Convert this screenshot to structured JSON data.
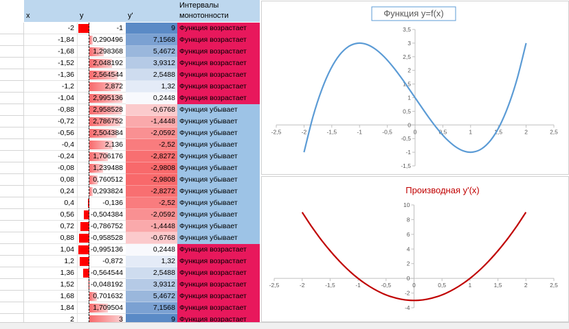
{
  "headers": {
    "x": "x",
    "y": "y",
    "dy": "y'",
    "interval": "Интервалы монотонности"
  },
  "labels": {
    "up": "Функция возрастает",
    "down": "Функция убывает"
  },
  "colors": {
    "increasing": "#e8185c",
    "decreasing": "#9dc3e6",
    "header": "#bdd7ee",
    "curve_f": "#5b9bd5",
    "curve_d": "#c00000"
  },
  "rows": [
    {
      "x": "-2",
      "y": "-1",
      "dy": "9",
      "interval": "Функция возрастает"
    },
    {
      "x": "-1,84",
      "y": "0,290496",
      "dy": "7,1568",
      "interval": "Функция возрастает"
    },
    {
      "x": "-1,68",
      "y": "1,298368",
      "dy": "5,4672",
      "interval": "Функция возрастает"
    },
    {
      "x": "-1,52",
      "y": "2,048192",
      "dy": "3,9312",
      "interval": "Функция возрастает"
    },
    {
      "x": "-1,36",
      "y": "2,564544",
      "dy": "2,5488",
      "interval": "Функция возрастает"
    },
    {
      "x": "-1,2",
      "y": "2,872",
      "dy": "1,32",
      "interval": "Функция возрастает"
    },
    {
      "x": "-1,04",
      "y": "2,995136",
      "dy": "0,2448",
      "interval": "Функция возрастает"
    },
    {
      "x": "-0,88",
      "y": "2,958528",
      "dy": "-0,6768",
      "interval": "Функция убывает"
    },
    {
      "x": "-0,72",
      "y": "2,786752",
      "dy": "-1,4448",
      "interval": "Функция убывает"
    },
    {
      "x": "-0,56",
      "y": "2,504384",
      "dy": "-2,0592",
      "interval": "Функция убывает"
    },
    {
      "x": "-0,4",
      "y": "2,136",
      "dy": "-2,52",
      "interval": "Функция убывает"
    },
    {
      "x": "-0,24",
      "y": "1,706176",
      "dy": "-2,8272",
      "interval": "Функция убывает"
    },
    {
      "x": "-0,08",
      "y": "1,239488",
      "dy": "-2,9808",
      "interval": "Функция убывает"
    },
    {
      "x": "0,08",
      "y": "0,760512",
      "dy": "-2,9808",
      "interval": "Функция убывает"
    },
    {
      "x": "0,24",
      "y": "0,293824",
      "dy": "-2,8272",
      "interval": "Функция убывает"
    },
    {
      "x": "0,4",
      "y": "-0,136",
      "dy": "-2,52",
      "interval": "Функция убывает"
    },
    {
      "x": "0,56",
      "y": "-0,504384",
      "dy": "-2,0592",
      "interval": "Функция убывает"
    },
    {
      "x": "0,72",
      "y": "-0,786752",
      "dy": "-1,4448",
      "interval": "Функция убывает"
    },
    {
      "x": "0,88",
      "y": "-0,958528",
      "dy": "-0,6768",
      "interval": "Функция убывает"
    },
    {
      "x": "1,04",
      "y": "-0,995136",
      "dy": "0,2448",
      "interval": "Функция возрастает"
    },
    {
      "x": "1,2",
      "y": "-0,872",
      "dy": "1,32",
      "interval": "Функция возрастает"
    },
    {
      "x": "1,36",
      "y": "-0,564544",
      "dy": "2,5488",
      "interval": "Функция возрастает"
    },
    {
      "x": "1,52",
      "y": "-0,048192",
      "dy": "3,9312",
      "interval": "Функция возрастает"
    },
    {
      "x": "1,68",
      "y": "0,701632",
      "dy": "5,4672",
      "interval": "Функция возрастает"
    },
    {
      "x": "1,84",
      "y": "1,709504",
      "dy": "7,1568",
      "interval": "Функция возрастает"
    },
    {
      "x": "2",
      "y": "3",
      "dy": "9",
      "interval": "Функция возрастает"
    }
  ],
  "chart_data": [
    {
      "type": "line",
      "title": "Функция y=f(x)",
      "x": [
        -2,
        -1.84,
        -1.68,
        -1.52,
        -1.36,
        -1.2,
        -1.04,
        -0.88,
        -0.72,
        -0.56,
        -0.4,
        -0.24,
        -0.08,
        0.08,
        0.24,
        0.4,
        0.56,
        0.72,
        0.88,
        1.04,
        1.2,
        1.36,
        1.52,
        1.68,
        1.84,
        2
      ],
      "y": [
        -1,
        0.290496,
        1.298368,
        2.048192,
        2.564544,
        2.872,
        2.995136,
        2.958528,
        2.786752,
        2.504384,
        2.136,
        1.706176,
        1.239488,
        0.760512,
        0.293824,
        -0.136,
        -0.504384,
        -0.786752,
        -0.958528,
        -0.995136,
        -0.872,
        -0.564544,
        -0.048192,
        0.701632,
        1.709504,
        3
      ],
      "xlim": [
        -2.5,
        2.5
      ],
      "ylim": [
        -1.5,
        3.5
      ],
      "xticks": [
        "-2,5",
        "-2",
        "-1,5",
        "-1",
        "-0,5",
        "0",
        "0,5",
        "1",
        "1,5",
        "2",
        "2,5"
      ],
      "yticks": [
        "-1,5",
        "-1",
        "-0,5",
        "0",
        "0,5",
        "1",
        "1,5",
        "2",
        "2,5",
        "3",
        "3,5"
      ],
      "grid": false
    },
    {
      "type": "line",
      "title": "Производная y'(x)",
      "x": [
        -2,
        -1.84,
        -1.68,
        -1.52,
        -1.36,
        -1.2,
        -1.04,
        -0.88,
        -0.72,
        -0.56,
        -0.4,
        -0.24,
        -0.08,
        0.08,
        0.24,
        0.4,
        0.56,
        0.72,
        0.88,
        1.04,
        1.2,
        1.36,
        1.52,
        1.68,
        1.84,
        2
      ],
      "y": [
        9,
        7.1568,
        5.4672,
        3.9312,
        2.5488,
        1.32,
        0.2448,
        -0.6768,
        -1.4448,
        -2.0592,
        -2.52,
        -2.8272,
        -2.9808,
        -2.9808,
        -2.8272,
        -2.52,
        -2.0592,
        -1.4448,
        -0.6768,
        0.2448,
        1.32,
        2.5488,
        3.9312,
        5.4672,
        7.1568,
        9
      ],
      "xlim": [
        -2.5,
        2.5
      ],
      "ylim": [
        -4,
        10
      ],
      "xticks": [
        "-2,5",
        "-2",
        "-1,5",
        "-1",
        "-0,5",
        "0",
        "0,5",
        "1",
        "1,5",
        "2",
        "2,5"
      ],
      "yticks": [
        "-4",
        "-2",
        "0",
        "2",
        "4",
        "6",
        "8",
        "10"
      ],
      "grid": false
    }
  ]
}
